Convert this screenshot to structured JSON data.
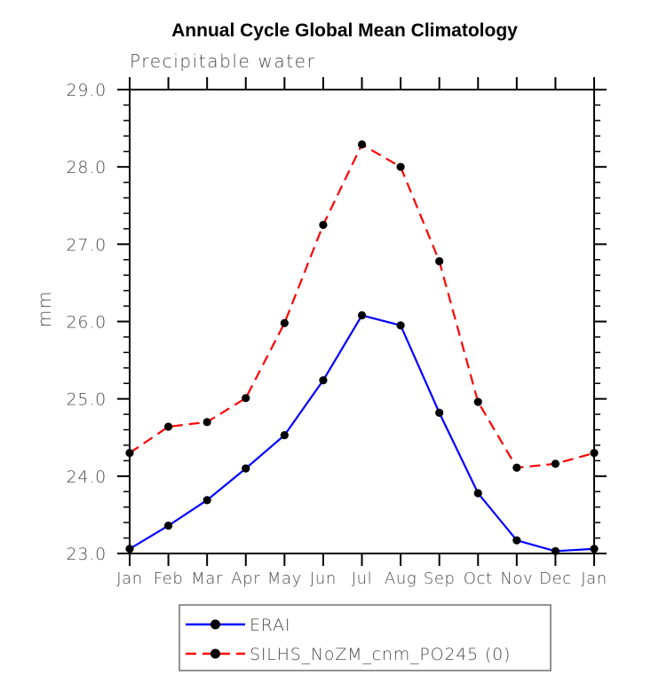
{
  "title": "Annual Cycle Global Mean Climatology",
  "subtitle": "Precipitable water",
  "y_axis_label": "mm",
  "chart_data": {
    "type": "line",
    "categories": [
      "Jan",
      "Feb",
      "Mar",
      "Apr",
      "May",
      "Jun",
      "Jul",
      "Aug",
      "Sep",
      "Oct",
      "Nov",
      "Dec",
      "Jan"
    ],
    "series": [
      {
        "name": "ERAI",
        "color": "#0000ff",
        "line_style": "solid",
        "values": [
          23.06,
          23.36,
          23.69,
          24.1,
          24.53,
          25.24,
          26.08,
          25.95,
          24.82,
          23.78,
          23.17,
          23.03,
          23.06
        ]
      },
      {
        "name": "SILHS_NoZM_cnm_PO245 (0)",
        "color": "#ff0000",
        "line_style": "dashed",
        "values": [
          24.3,
          24.64,
          24.7,
          25.01,
          25.98,
          27.25,
          28.29,
          28.0,
          26.78,
          24.96,
          24.11,
          24.16,
          24.3
        ]
      }
    ],
    "ylim": [
      23.0,
      29.0
    ],
    "ytick_step": 1.0,
    "yminor_step": 0.2,
    "ytick_labels": [
      "23.0",
      "24.0",
      "25.0",
      "26.0",
      "27.0",
      "28.0",
      "29.0"
    ],
    "marker": "filled-circle",
    "marker_color": "#000000",
    "axis_color": "#000000",
    "text_color": "#4a4a4a",
    "grid": false,
    "legend_position": "bottom"
  }
}
